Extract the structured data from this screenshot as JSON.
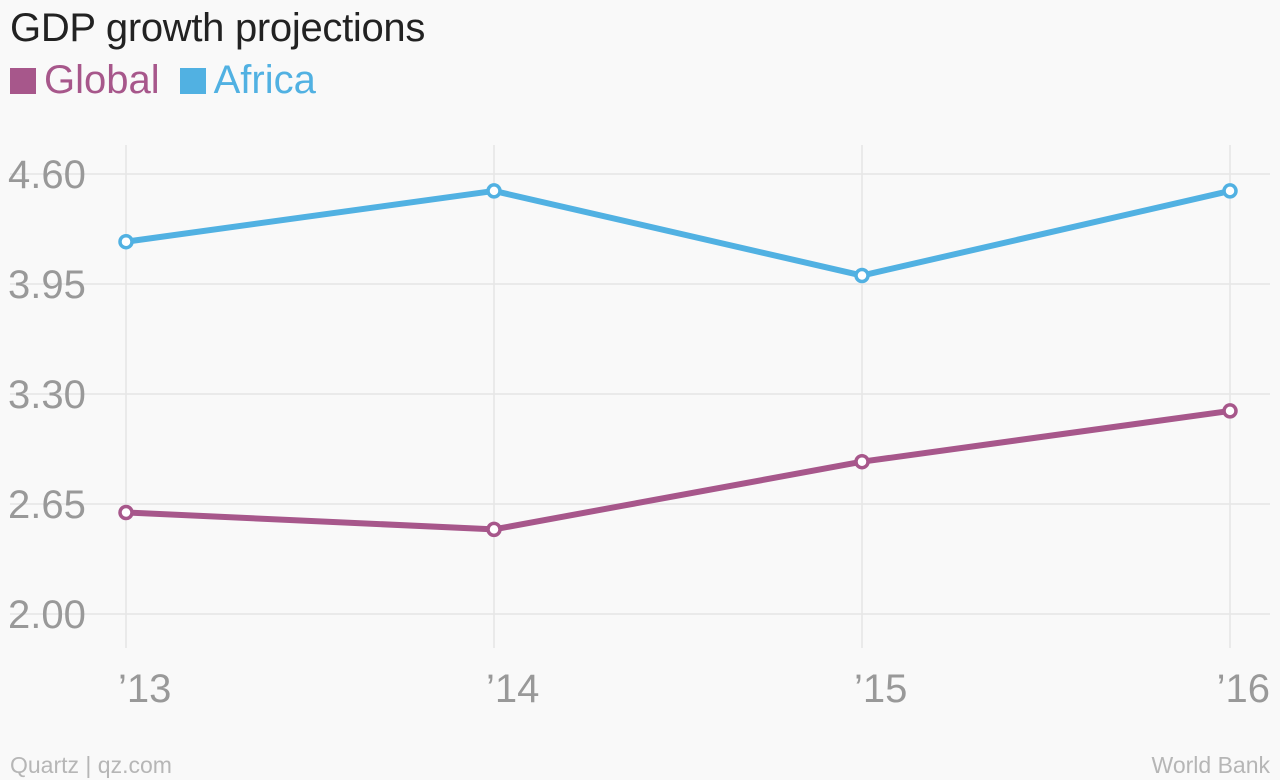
{
  "chart_data": {
    "type": "line",
    "title": "GDP growth projections",
    "categories": [
      "’13",
      "’14",
      "’15",
      "’16"
    ],
    "series": [
      {
        "name": "Global",
        "color": "#a7578b",
        "values": [
          2.6,
          2.5,
          2.9,
          3.2
        ]
      },
      {
        "name": "Africa",
        "color": "#51b1e2",
        "values": [
          4.2,
          4.5,
          4.0,
          4.5
        ]
      }
    ],
    "yticks": [
      "4.60",
      "3.95",
      "3.30",
      "2.65",
      "2.00"
    ],
    "ylim": [
      2.0,
      4.6
    ],
    "grid": true,
    "legend_position": "top-left"
  },
  "footer": {
    "credit": "Quartz | qz.com",
    "source": "World Bank"
  }
}
